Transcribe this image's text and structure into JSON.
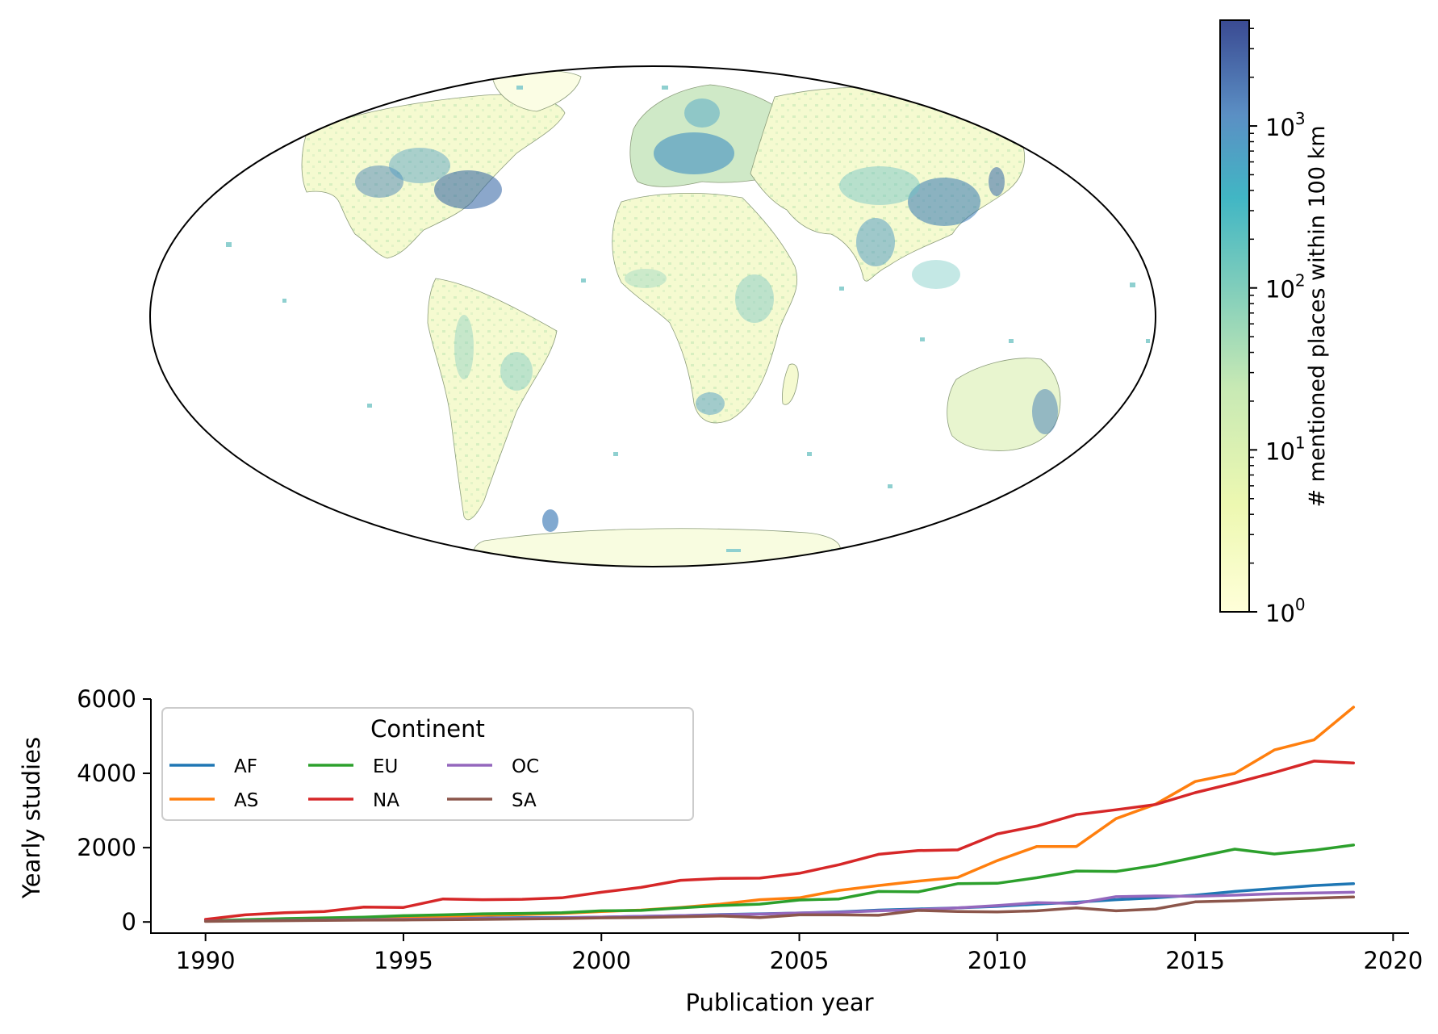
{
  "colors": {
    "AF": "#1f77b4",
    "AS": "#ff7f0e",
    "EU": "#2ca02c",
    "NA": "#d62728",
    "OC": "#9467bd",
    "SA": "#8c564b",
    "cmap_low": "#ffffd9",
    "cmap_mid": "#c7e9b4",
    "cmap_midhigh": "#41b6c4",
    "cmap_high": "#2c3b8c",
    "land": "#f7fbd6",
    "land_dense": "#7fc8c8"
  },
  "chart_data": [
    {
      "type": "heatmap",
      "description": "",
      "projection": "Mollweide",
      "colorbar": {
        "label": "# mentioned places within 100 km",
        "scale": "log",
        "range": [
          1,
          4500
        ],
        "ticks": [
          {
            "base": "10",
            "exp": "0",
            "value": 1
          },
          {
            "base": "10",
            "exp": "1",
            "value": 10
          },
          {
            "base": "10",
            "exp": "2",
            "value": 100
          },
          {
            "base": "10",
            "exp": "3",
            "value": 1000
          }
        ]
      },
      "hotspots": [
        {
          "region": "Eastern North America",
          "level": 3.2
        },
        {
          "region": "Western Europe",
          "level": 3.0
        },
        {
          "region": "East China",
          "level": 3.1
        },
        {
          "region": "India",
          "level": 2.6
        },
        {
          "region": "Japan",
          "level": 2.6
        },
        {
          "region": "Southeast Australia",
          "level": 2.4
        },
        {
          "region": "South Africa",
          "level": 2.0
        },
        {
          "region": "Brazil coast",
          "level": 1.9
        }
      ]
    },
    {
      "type": "line",
      "xlabel": "Publication year",
      "ylabel": "Yearly studies",
      "xlim": [
        1988.6,
        2020.4
      ],
      "ylim": [
        -300,
        6000
      ],
      "xticks": [
        1990,
        1995,
        2000,
        2005,
        2010,
        2015,
        2020
      ],
      "yticks": [
        0,
        2000,
        4000,
        6000
      ],
      "grid": false,
      "legend": {
        "title": "Continent",
        "placement": "top-left",
        "columns": 4
      },
      "x": [
        1990,
        1991,
        1992,
        1993,
        1994,
        1995,
        1996,
        1997,
        1998,
        1999,
        2000,
        2001,
        2002,
        2003,
        2004,
        2005,
        2006,
        2007,
        2008,
        2009,
        2010,
        2011,
        2012,
        2013,
        2014,
        2015,
        2016,
        2017,
        2018,
        2019
      ],
      "series": [
        {
          "name": "AF",
          "values": [
            30,
            45,
            55,
            65,
            75,
            85,
            95,
            105,
            115,
            120,
            130,
            150,
            170,
            200,
            220,
            240,
            270,
            320,
            350,
            380,
            420,
            480,
            530,
            600,
            650,
            720,
            820,
            900,
            980,
            1030
          ]
        },
        {
          "name": "AS",
          "values": [
            20,
            40,
            60,
            75,
            95,
            120,
            150,
            180,
            200,
            230,
            280,
            320,
            390,
            480,
            600,
            650,
            850,
            980,
            1100,
            1200,
            1650,
            2030,
            2030,
            2780,
            3170,
            3780,
            4000,
            4630,
            4900,
            5780
          ]
        },
        {
          "name": "EU",
          "values": [
            30,
            60,
            90,
            110,
            130,
            170,
            190,
            220,
            230,
            250,
            300,
            310,
            380,
            440,
            480,
            590,
            620,
            820,
            810,
            1030,
            1040,
            1190,
            1370,
            1360,
            1520,
            1740,
            1960,
            1830,
            1930,
            2070
          ]
        },
        {
          "name": "NA",
          "values": [
            70,
            190,
            250,
            280,
            400,
            390,
            620,
            600,
            610,
            650,
            800,
            930,
            1120,
            1170,
            1180,
            1310,
            1540,
            1820,
            1920,
            1940,
            2370,
            2580,
            2890,
            3020,
            3160,
            3480,
            3740,
            4020,
            4330,
            4280
          ]
        },
        {
          "name": "OC",
          "values": [
            20,
            30,
            40,
            50,
            60,
            70,
            80,
            90,
            100,
            110,
            130,
            150,
            170,
            190,
            210,
            240,
            260,
            300,
            330,
            380,
            440,
            520,
            500,
            680,
            700,
            690,
            720,
            760,
            780,
            800
          ]
        },
        {
          "name": "SA",
          "values": [
            15,
            25,
            35,
            40,
            50,
            55,
            60,
            70,
            80,
            90,
            110,
            120,
            140,
            160,
            120,
            190,
            190,
            180,
            310,
            280,
            270,
            300,
            380,
            300,
            350,
            540,
            570,
            610,
            640,
            670
          ]
        }
      ]
    }
  ]
}
